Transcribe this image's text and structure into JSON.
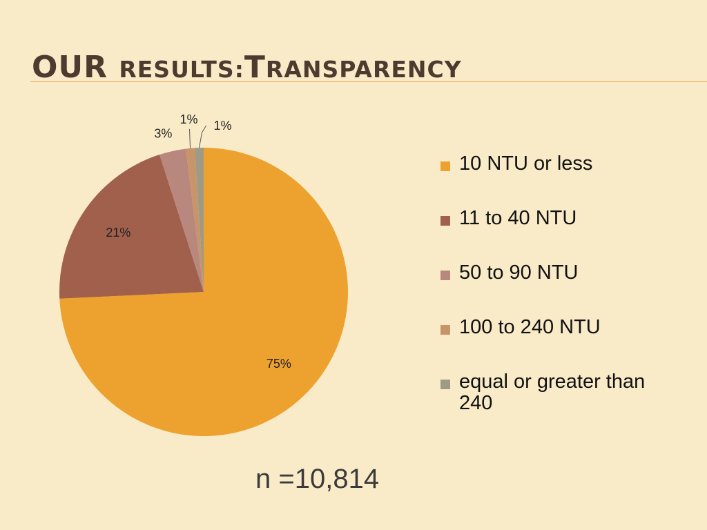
{
  "title": {
    "part1": "OUR ",
    "part2": "RESULTS:",
    "part3": "T",
    "part4": "RANSPARENCY"
  },
  "chart_data": {
    "type": "pie",
    "categories": [
      "10 NTU or less",
      "11 to 40 NTU",
      "50 to 90 NTU",
      "100 to 240 NTU",
      "equal or greater than 240"
    ],
    "values": [
      75,
      21,
      3,
      1,
      1
    ],
    "data_labels": [
      "75%",
      "21%",
      "3%",
      "1%",
      "1%"
    ],
    "colors": [
      "#eda22f",
      "#a0604c",
      "#b8877d",
      "#c8946a",
      "#9e9a85"
    ],
    "legend_position": "right"
  },
  "legend": [
    {
      "label": "10 NTU or less",
      "color": "#eda22f"
    },
    {
      "label": "11 to 40 NTU",
      "color": "#a0604c"
    },
    {
      "label": "50 to 90 NTU",
      "color": "#b8877d"
    },
    {
      "label": "100 to 240 NTU",
      "color": "#c8946a"
    },
    {
      "label": "equal or greater than 240",
      "color": "#9e9a85"
    }
  ],
  "sample_size": "n =10,814"
}
